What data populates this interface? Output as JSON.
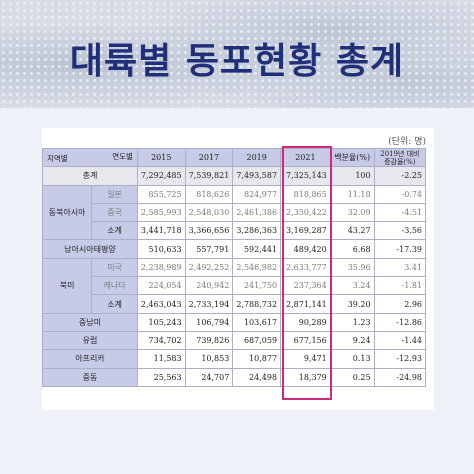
{
  "title": "대륙별 동포현황 총계",
  "unit_note": "(단위: 명)",
  "header": {
    "corner_top": "연도별",
    "corner_bottom": "지역별",
    "years": [
      "2015",
      "2017",
      "2019",
      "2021"
    ],
    "pct": "백분율(%)",
    "change": "2019년 대비 증감율(%)"
  },
  "rows": {
    "total": {
      "label": "총계",
      "v": [
        "7,292,485",
        "7,539,821",
        "7,493,587",
        "7,325,143",
        "100",
        "-2.25"
      ]
    },
    "ne_japan": {
      "label": "일본",
      "v": [
        "855,725",
        "818,626",
        "824,977",
        "818,865",
        "11.18",
        "-0.74"
      ]
    },
    "ne_china": {
      "label": "중국",
      "v": [
        "2,585,993",
        "2,548,030",
        "2,461,386",
        "2,350,422",
        "32.09",
        "-4.51"
      ]
    },
    "ne_sub": {
      "label": "소계",
      "v": [
        "3,441,718",
        "3,366,656",
        "3,286,363",
        "3,169,287",
        "43.27",
        "-3.56"
      ]
    },
    "sea": {
      "label": "남아시아태평양",
      "v": [
        "510,633",
        "557,791",
        "592,441",
        "489,420",
        "6.68",
        "-17.39"
      ]
    },
    "na_us": {
      "label": "미국",
      "v": [
        "2,238,989",
        "2,492,252",
        "2,546,982",
        "2,633,777",
        "35.96",
        "3.41"
      ]
    },
    "na_ca": {
      "label": "캐나다",
      "v": [
        "224,054",
        "240,942",
        "241,750",
        "237,364",
        "3.24",
        "-1.81"
      ]
    },
    "na_sub": {
      "label": "소계",
      "v": [
        "2,463,043",
        "2,733,194",
        "2,788,732",
        "2,871,141",
        "39.20",
        "2.96"
      ]
    },
    "latam": {
      "label": "중남미",
      "v": [
        "105,243",
        "106,794",
        "103,617",
        "90,289",
        "1.23",
        "-12.86"
      ]
    },
    "europe": {
      "label": "유럽",
      "v": [
        "734,702",
        "739,826",
        "687,059",
        "677,156",
        "9.24",
        "-1.44"
      ]
    },
    "africa": {
      "label": "아프리카",
      "v": [
        "11,583",
        "10,853",
        "10,877",
        "9,471",
        "0.13",
        "-12.93"
      ]
    },
    "mideast": {
      "label": "중동",
      "v": [
        "25,563",
        "24,707",
        "24,498",
        "18,379",
        "0.25",
        "-24.98"
      ]
    }
  },
  "groups": {
    "northeast": "동북아시아",
    "northamerica": "북미"
  },
  "highlight_color": "#d0287a"
}
